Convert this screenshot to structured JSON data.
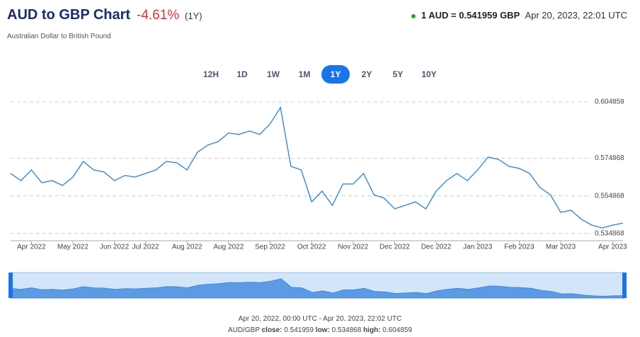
{
  "header": {
    "title": "AUD to GBP Chart",
    "change": "-4.61%",
    "period": "(1Y)",
    "subtitle": "Australian Dollar to British Pound",
    "rate": "1 AUD = 0.541959 GBP",
    "timestamp": "Apr 20, 2023, 22:01 UTC"
  },
  "range_buttons": [
    "12H",
    "1D",
    "1W",
    "1M",
    "1Y",
    "2Y",
    "5Y",
    "10Y"
  ],
  "active_range_index": 4,
  "footer": {
    "range": "Apr 20, 2022, 00:00 UTC - Apr 20, 2023, 22:02 UTC",
    "pair": "AUD/GBP",
    "close_label": "close:",
    "close": "0.541959",
    "low_label": "low:",
    "low": "0.534868",
    "high_label": "high:",
    "high": "0.604859"
  },
  "chart_data": {
    "type": "line",
    "categories": [
      null,
      null,
      "Apr 2022",
      null,
      null,
      null,
      "May 2022",
      null,
      null,
      null,
      "Jun 2022",
      null,
      null,
      "Jul 2022",
      null,
      null,
      null,
      "Aug 2022",
      null,
      null,
      null,
      "Aug 2022",
      null,
      null,
      null,
      "Sep 2022",
      null,
      null,
      null,
      "Oct 2022",
      null,
      null,
      null,
      "Nov 2022",
      null,
      null,
      null,
      "Dec 2022",
      null,
      null,
      null,
      "Dec 2022",
      null,
      null,
      null,
      "Jan 2023",
      null,
      null,
      null,
      "Feb 2023",
      null,
      null,
      null,
      "Mar 2023",
      null,
      null,
      null,
      null,
      "Apr 2023",
      null
    ],
    "series": [
      {
        "name": "AUD/GBP",
        "color": "#2a7fd6",
        "values": [
          0.5668,
          0.563,
          0.5687,
          0.5619,
          0.563,
          0.5604,
          0.5649,
          0.5732,
          0.5687,
          0.5676,
          0.563,
          0.5657,
          0.5649,
          0.5668,
          0.5687,
          0.5732,
          0.5725,
          0.5687,
          0.5781,
          0.5819,
          0.5838,
          0.5883,
          0.5876,
          0.5894,
          0.5876,
          0.5932,
          0.6019,
          0.5706,
          0.5687,
          0.5517,
          0.5574,
          0.5498,
          0.5612,
          0.5612,
          0.5668,
          0.5555,
          0.5536,
          0.548,
          0.5498,
          0.5517,
          0.548,
          0.5574,
          0.563,
          0.5668,
          0.563,
          0.5687,
          0.5755,
          0.5743,
          0.5706,
          0.5695,
          0.5668,
          0.5593,
          0.5555,
          0.5461,
          0.5472,
          0.5423,
          0.5393,
          0.5378,
          0.5393,
          0.5404
        ]
      }
    ],
    "ylim": [
      0.531,
      0.609
    ],
    "yticks": [
      0.534868,
      0.554868,
      0.574868,
      0.604859
    ],
    "grid": true
  }
}
